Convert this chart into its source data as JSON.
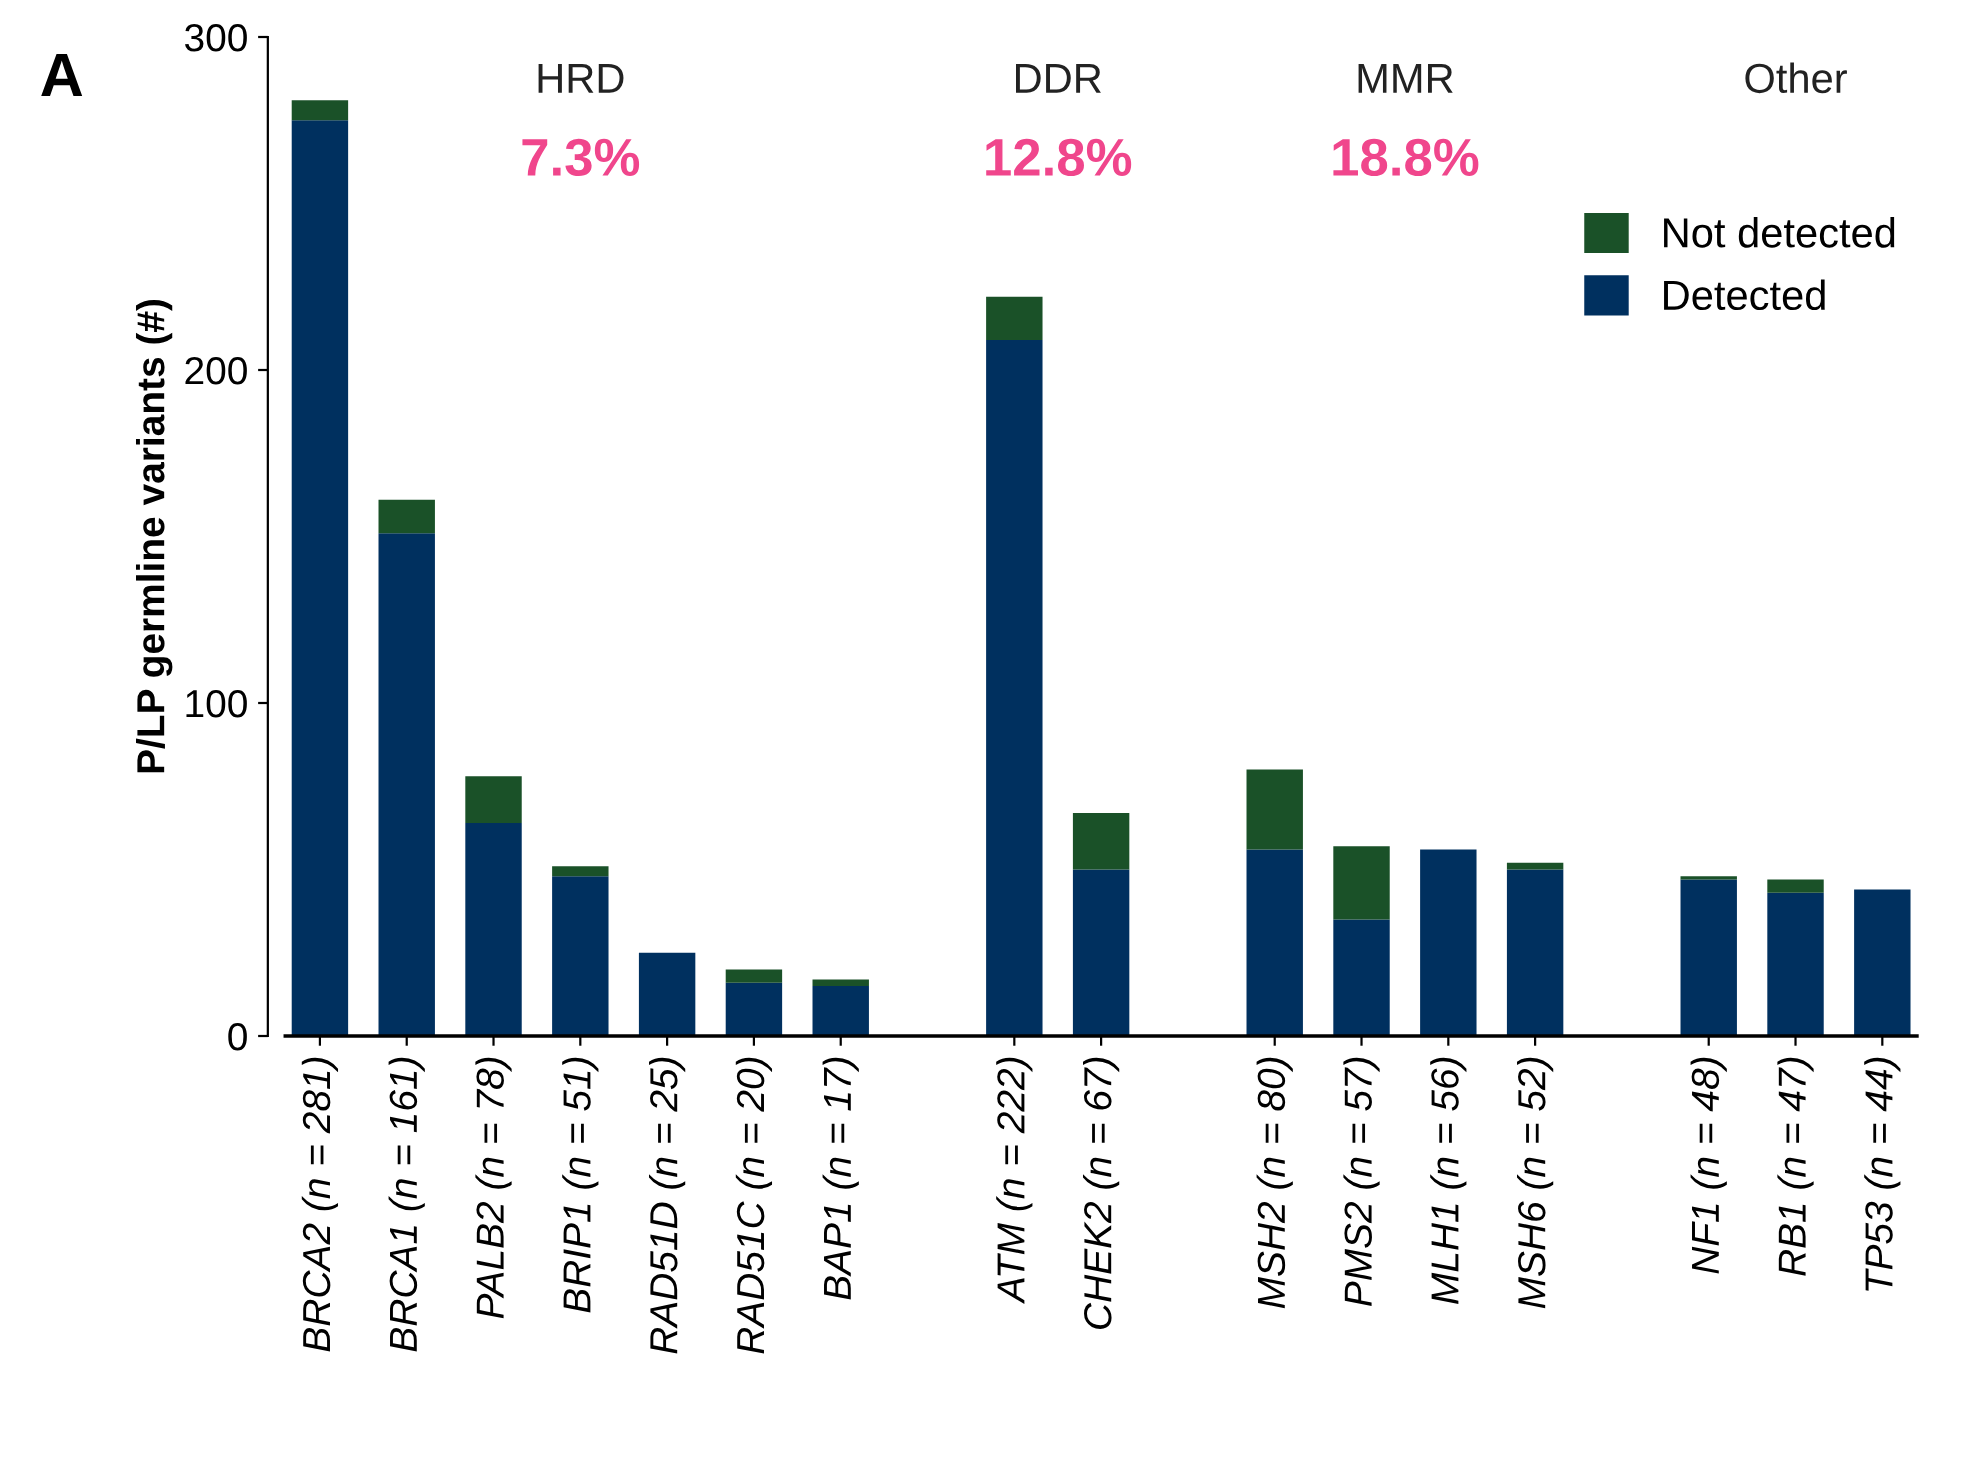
{
  "chart_data": {
    "type": "bar",
    "title": "A",
    "ylabel": "P/LP germline variants (#)",
    "categories": [
      "BRCA2 (n = 281)",
      "BRCA1 (n = 161)",
      "PALB2 (n = 78)",
      "BRIP1 (n = 51)",
      "RAD51D (n = 25)",
      "RAD51C (n = 20)",
      "BAP1 (n = 17)",
      null,
      "ATM (n = 222)",
      "CHEK2 (n = 67)",
      null,
      "MSH2 (n = 80)",
      "PMS2 (n = 57)",
      "MLH1 (n = 56)",
      "MSH6 (n = 52)",
      null,
      "NF1 (n = 48)",
      "RB1 (n = 47)",
      "TP53 (n = 44)"
    ],
    "series": [
      {
        "name": "Detected",
        "color": "#00305f",
        "values": [
          275,
          151,
          64,
          48,
          25,
          16,
          15,
          null,
          209,
          50,
          null,
          56,
          35,
          56,
          50,
          null,
          47,
          43,
          44
        ]
      },
      {
        "name": "Not detected",
        "color": "#1a5128",
        "values": [
          6,
          10,
          14,
          3,
          0,
          4,
          2,
          null,
          13,
          17,
          null,
          24,
          22,
          0,
          2,
          null,
          1,
          4,
          0
        ]
      }
    ],
    "stacked": true,
    "ylim": [
      0,
      300
    ],
    "yticks": [
      0,
      100,
      200,
      300
    ],
    "legend": "top right",
    "annotations": [
      "HRD",
      "DDR",
      "MMR",
      "Other",
      "7.3%",
      "12.8%",
      "18.8%"
    ]
  }
}
